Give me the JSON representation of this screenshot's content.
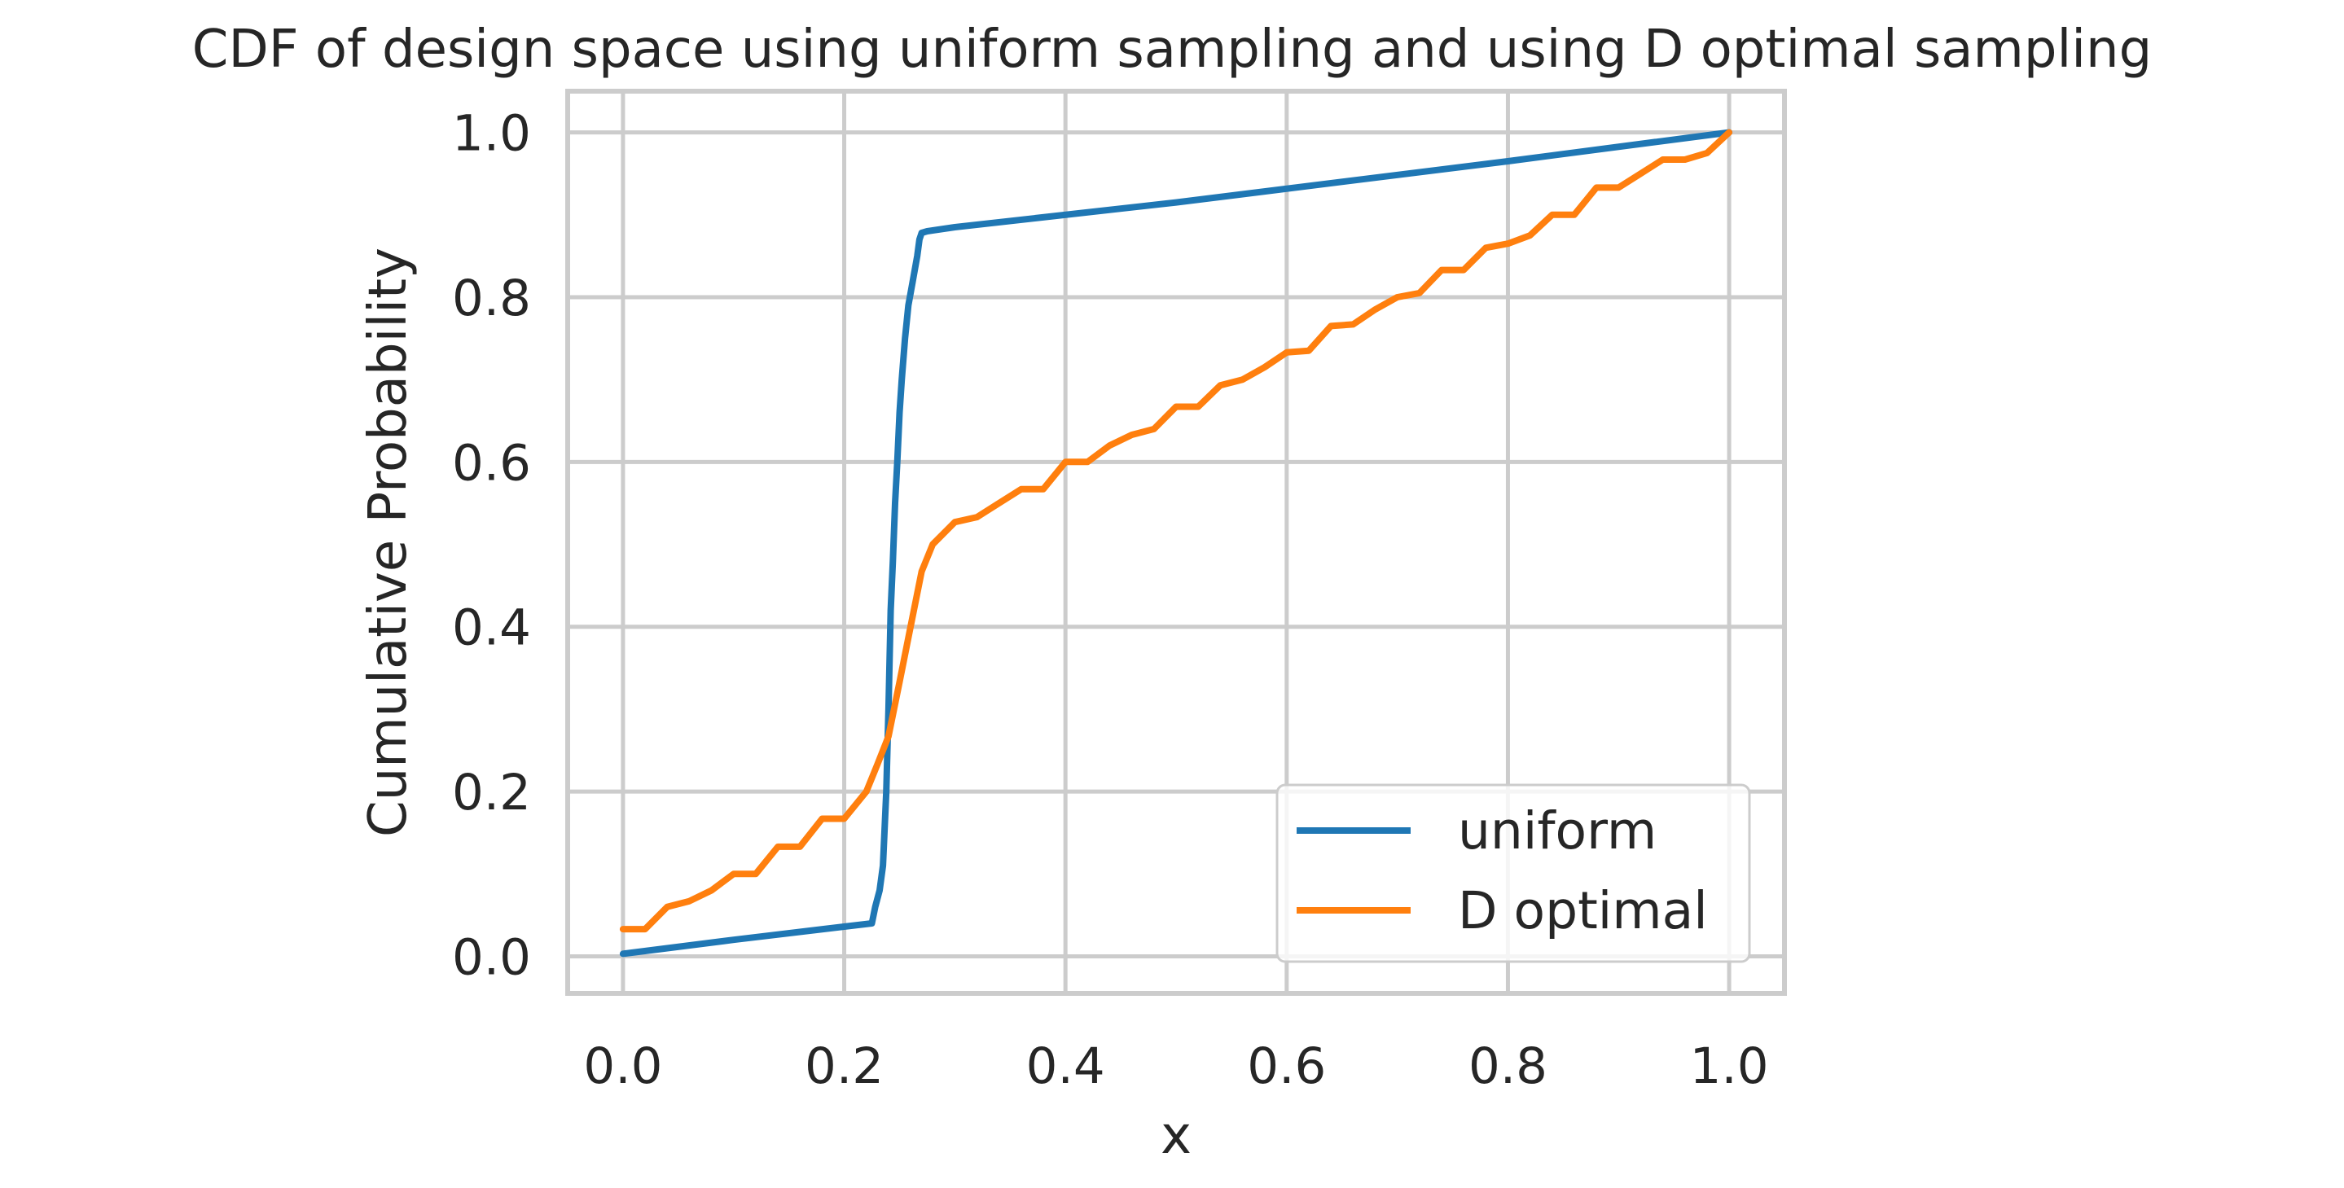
{
  "chart_data": {
    "type": "line",
    "title": "CDF of design space using uniform sampling and using D optimal sampling",
    "xlabel": "x",
    "ylabel": "Cumulative Probability",
    "xlim": [
      -0.05,
      1.05
    ],
    "ylim": [
      -0.045,
      1.05
    ],
    "xticks": [
      0.0,
      0.2,
      0.4,
      0.6,
      0.8,
      1.0
    ],
    "xtick_labels": [
      "0.0",
      "0.2",
      "0.4",
      "0.6",
      "0.8",
      "1.0"
    ],
    "yticks": [
      0.0,
      0.2,
      0.4,
      0.6,
      0.8,
      1.0
    ],
    "ytick_labels": [
      "0.0",
      "0.2",
      "0.4",
      "0.6",
      "0.8",
      "1.0"
    ],
    "grid": true,
    "legend_position": "lower-right",
    "series": [
      {
        "name": "uniform",
        "color": "#1f77b4",
        "x": [
          0.0,
          0.1,
          0.2,
          0.225,
          0.228,
          0.232,
          0.235,
          0.238,
          0.24,
          0.242,
          0.244,
          0.246,
          0.248,
          0.25,
          0.252,
          0.255,
          0.258,
          0.262,
          0.266,
          0.268,
          0.27,
          0.275,
          0.3,
          0.5,
          0.8,
          1.0
        ],
        "y": [
          0.003,
          0.02,
          0.036,
          0.04,
          0.06,
          0.08,
          0.11,
          0.2,
          0.3,
          0.42,
          0.48,
          0.55,
          0.6,
          0.66,
          0.7,
          0.75,
          0.79,
          0.82,
          0.85,
          0.87,
          0.878,
          0.88,
          0.885,
          0.915,
          0.965,
          1.0
        ]
      },
      {
        "name": "D optimal",
        "color": "#ff7f0e",
        "x": [
          0.0,
          0.02,
          0.04,
          0.06,
          0.08,
          0.1,
          0.12,
          0.14,
          0.16,
          0.18,
          0.2,
          0.22,
          0.23,
          0.24,
          0.245,
          0.25,
          0.26,
          0.27,
          0.28,
          0.3,
          0.32,
          0.34,
          0.36,
          0.38,
          0.4,
          0.42,
          0.44,
          0.46,
          0.48,
          0.5,
          0.52,
          0.54,
          0.56,
          0.58,
          0.6,
          0.62,
          0.64,
          0.66,
          0.68,
          0.7,
          0.72,
          0.74,
          0.76,
          0.78,
          0.8,
          0.82,
          0.84,
          0.86,
          0.88,
          0.9,
          0.92,
          0.94,
          0.96,
          0.98,
          1.0
        ],
        "y": [
          0.033,
          0.033,
          0.06,
          0.067,
          0.08,
          0.1,
          0.1,
          0.133,
          0.133,
          0.167,
          0.167,
          0.2,
          0.233,
          0.267,
          0.3,
          0.333,
          0.4,
          0.467,
          0.5,
          0.527,
          0.533,
          0.55,
          0.567,
          0.567,
          0.6,
          0.6,
          0.62,
          0.633,
          0.64,
          0.667,
          0.667,
          0.693,
          0.7,
          0.715,
          0.733,
          0.735,
          0.765,
          0.767,
          0.785,
          0.8,
          0.805,
          0.833,
          0.833,
          0.86,
          0.865,
          0.875,
          0.9,
          0.9,
          0.933,
          0.933,
          0.95,
          0.967,
          0.967,
          0.975,
          1.0
        ]
      }
    ]
  }
}
